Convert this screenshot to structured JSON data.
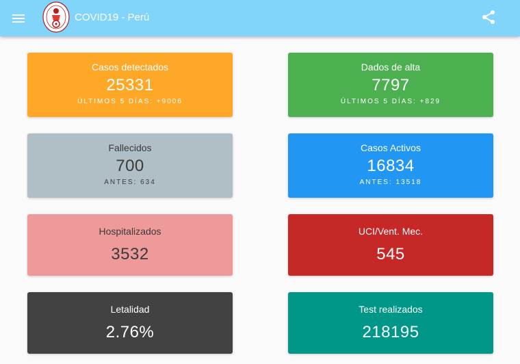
{
  "appbar": {
    "title": "COVID19 - Perú",
    "background": "#81d4fa",
    "menu_icon": "menu-icon",
    "logo_icon": "university-seal-logo",
    "share_icon": "share-icon"
  },
  "cards": {
    "detectados": {
      "label": "Casos detectados",
      "value": "25331",
      "sub": "ÚLTIMOS 5 DÍAS: +9006",
      "color": "#ffa726"
    },
    "alta": {
      "label": "Dados de alta",
      "value": "7797",
      "sub": "ÚLTIMOS 5 DÍAS: +829",
      "color": "#4caf50"
    },
    "fallecidos": {
      "label": "Fallecidos",
      "value": "700",
      "sub": "ANTES: 634",
      "color": "#b0bec5"
    },
    "activos": {
      "label": "Casos Activos",
      "value": "16834",
      "sub": "ANTES: 13518",
      "color": "#2196f3"
    },
    "hospitalizados": {
      "label": "Hospitalizados",
      "value": "3532",
      "color": "#ef9a9a"
    },
    "uci": {
      "label": "UCI/Vent. Mec.",
      "value": "545",
      "color": "#c62828"
    },
    "letalidad": {
      "label": "Letalidad",
      "value": "2.76%",
      "color": "#424242"
    },
    "tests": {
      "label": "Test realizados",
      "value": "218195",
      "color": "#009688"
    }
  }
}
